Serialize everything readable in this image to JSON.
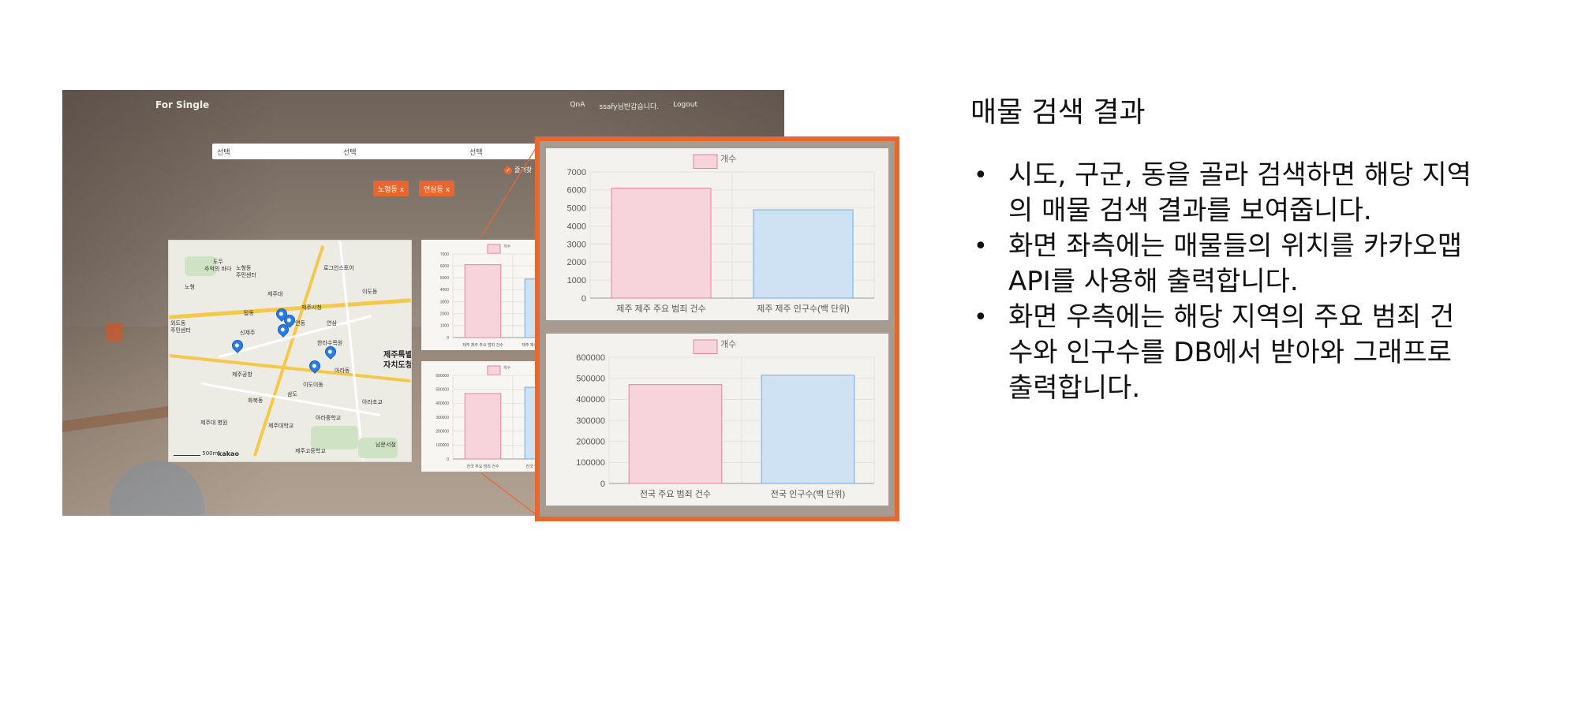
{
  "slide": {
    "heading": "매물 검색 결과",
    "bullets": [
      "시도, 구군, 동을 골라 검색하면 해당 지역의 매물 검색 결과를 보여줍니다.",
      "화면 좌측에는 매물들의 위치를 카카오맵 API를 사용해 출력합니다.",
      "화면 우측에는 해당 지역의 주요 범죄 건수와 인구수를 DB에서 받아와 그래프로 출력합니다."
    ]
  },
  "screenshot": {
    "brand": "For Single",
    "nav": {
      "qna": "QnA",
      "greeting": "ssafy님반갑습니다.",
      "logout": "Logout"
    },
    "selects": [
      "선택",
      "선택",
      "선택"
    ],
    "favorite_label": "즐겨찾",
    "tags": [
      "노형동 x",
      "연삼동 x"
    ],
    "map": {
      "labels": [
        "도두",
        "추억의 바다",
        "노형동",
        "주민센터",
        "노형",
        "로그인스토어",
        "제주대",
        "이도동",
        "외도동",
        "주민센터",
        "탑동",
        "제주시청",
        "연동",
        "신제주",
        "연삼",
        "제주특별",
        "자치도청",
        "한라수목원",
        "제주공항",
        "아라동",
        "삼도",
        "아라초교",
        "화북동",
        "이도이동",
        "제주고등학교",
        "남문서점",
        "제주대학교",
        "아라중학교",
        "제주대 병원"
      ],
      "big_labels": [
        "제주특별",
        "자치도청"
      ],
      "scale": "500m",
      "attribution": "kakao"
    },
    "icons": [
      "map-pin-icon",
      "select-arrow-icon",
      "check-icon"
    ]
  },
  "chart_data": [
    {
      "type": "bar",
      "title": "",
      "legend": [
        "개수"
      ],
      "categories": [
        "제주 제주 주요 범죄 건수",
        "제주 제주 인구수(백 단위)"
      ],
      "values": [
        6100,
        4900
      ],
      "colors": [
        "#f7d4dc",
        "#cfe2f3"
      ],
      "border_colors": [
        "#e6829a",
        "#6aaee0"
      ],
      "yticks": [
        "0",
        "1000",
        "2000",
        "3000",
        "4000",
        "5000",
        "6000",
        "7000"
      ],
      "ylim": [
        0,
        7000
      ]
    },
    {
      "type": "bar",
      "title": "",
      "legend": [
        "개수"
      ],
      "categories": [
        "전국 주요 범죄 건수",
        "전국 인구수(백 단위)"
      ],
      "values": [
        470000,
        515000
      ],
      "colors": [
        "#f7d4dc",
        "#cfe2f3"
      ],
      "border_colors": [
        "#e6829a",
        "#6aaee0"
      ],
      "yticks": [
        "0",
        "100000",
        "200000",
        "300000",
        "400000",
        "500000",
        "600000"
      ],
      "ylim": [
        0,
        600000
      ]
    }
  ]
}
